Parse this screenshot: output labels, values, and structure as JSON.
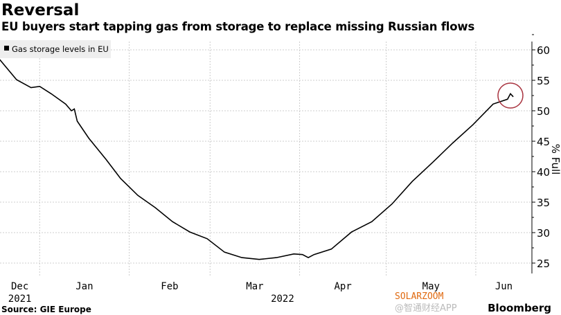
{
  "title": "Reversal",
  "subtitle": "EU buyers start tapping gas from storage to replace missing Russian flows",
  "source": "Source: GIE Europe",
  "brand": "Bloomberg",
  "watermarks": [
    "SOLARZOOM",
    "@智通财经APP"
  ],
  "colors": {
    "line": "#000000",
    "highlight_circle": "#a8323e",
    "grid": "#cccccc",
    "legend_bg": "#eeeeee"
  },
  "chart_data": {
    "type": "line",
    "title": "Reversal",
    "ylabel": "% Full",
    "ylim": [
      24,
      62
    ],
    "yticks": [
      25,
      30,
      35,
      40,
      45,
      50,
      55,
      60
    ],
    "xticks": [
      {
        "label": "Dec",
        "date": "2021-12-01"
      },
      {
        "label": "Jan",
        "date": "2022-01-01"
      },
      {
        "label": "Feb",
        "date": "2022-02-01"
      },
      {
        "label": "Mar",
        "date": "2022-03-01"
      },
      {
        "label": "Apr",
        "date": "2022-04-01"
      },
      {
        "label": "May",
        "date": "2022-05-01"
      },
      {
        "label": "Jun",
        "date": "2022-06-01"
      }
    ],
    "year_labels": [
      {
        "label": "2021",
        "under": "Dec"
      },
      {
        "label": "2022",
        "under": "Mar"
      }
    ],
    "grid": true,
    "legend_placement": "top-left",
    "series": [
      {
        "name": "Gas storage levels in EU",
        "points": [
          [
            "2021-12-18",
            58.5
          ],
          [
            "2021-12-24",
            55.1
          ],
          [
            "2021-12-29",
            53.8
          ],
          [
            "2022-01-01",
            54.0
          ],
          [
            "2022-01-05",
            52.8
          ],
          [
            "2022-01-10",
            51.1
          ],
          [
            "2022-01-12",
            50.0
          ],
          [
            "2022-01-13",
            50.3
          ],
          [
            "2022-01-14",
            48.3
          ],
          [
            "2022-01-18",
            45.5
          ],
          [
            "2022-01-24",
            42.0
          ],
          [
            "2022-01-29",
            38.9
          ],
          [
            "2022-02-04",
            36.1
          ],
          [
            "2022-02-10",
            34.1
          ],
          [
            "2022-02-16",
            31.8
          ],
          [
            "2022-02-22",
            30.1
          ],
          [
            "2022-02-28",
            29.0
          ],
          [
            "2022-03-06",
            26.8
          ],
          [
            "2022-03-12",
            25.9
          ],
          [
            "2022-03-18",
            25.6
          ],
          [
            "2022-03-24",
            25.9
          ],
          [
            "2022-03-30",
            26.5
          ],
          [
            "2022-04-02",
            26.4
          ],
          [
            "2022-04-04",
            25.9
          ],
          [
            "2022-04-06",
            26.4
          ],
          [
            "2022-04-12",
            27.3
          ],
          [
            "2022-04-19",
            30.1
          ],
          [
            "2022-04-26",
            31.8
          ],
          [
            "2022-05-03",
            34.7
          ],
          [
            "2022-05-10",
            38.4
          ],
          [
            "2022-05-17",
            41.5
          ],
          [
            "2022-05-24",
            44.7
          ],
          [
            "2022-05-31",
            47.7
          ],
          [
            "2022-06-07",
            51.1
          ],
          [
            "2022-06-12",
            51.9
          ],
          [
            "2022-06-13",
            52.8
          ],
          [
            "2022-06-14",
            52.3
          ]
        ]
      }
    ],
    "annotations": [
      {
        "type": "circle",
        "date": "2022-06-13",
        "value": 52.5
      }
    ]
  }
}
